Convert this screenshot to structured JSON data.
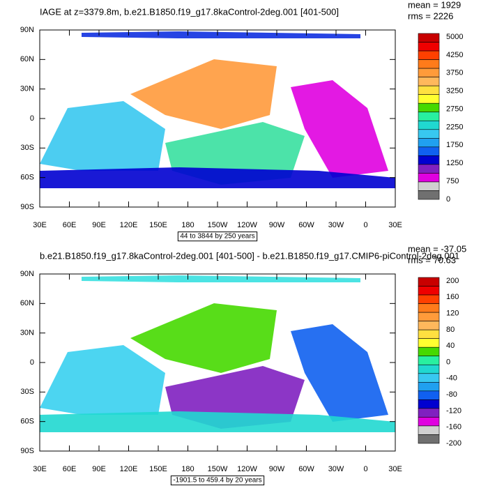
{
  "axes": {
    "lat_labels": [
      "90N",
      "60N",
      "30N",
      "0",
      "30S",
      "60S",
      "90S"
    ],
    "lon_labels": [
      "30E",
      "60E",
      "90E",
      "120E",
      "150E",
      "180",
      "150W",
      "120W",
      "90W",
      "60W",
      "30W",
      "0",
      "30E"
    ]
  },
  "panels": [
    {
      "title": "IAGE at z=3379.8m, b.e21.B1850.f19_g17.8kaControl-2deg.001 [401-500]",
      "mean": "mean = 1929",
      "rms": "rms = 2226",
      "range_note": "44 to 3844 by 250 years",
      "colorbar_labels": [
        "5000",
        "4250",
        "3750",
        "3250",
        "2750",
        "2250",
        "1750",
        "1250",
        "750",
        "0"
      ]
    },
    {
      "title": "b.e21.B1850.f19_g17.8kaControl-2deg.001 [401-500] - b.e21.B1850.f19_g17.CMIP6-piControl-2deg.001",
      "mean": "mean = -37.05",
      "rms": "rms = 70.63",
      "range_note": "-1901.5 to 459.4 by 20 years",
      "colorbar_labels": [
        "200",
        "160",
        "120",
        "80",
        "40",
        "0",
        "-40",
        "-80",
        "-120",
        "-160",
        "-200"
      ]
    }
  ],
  "colorbar_colors": [
    "#c80000",
    "#ef0000",
    "#ff4000",
    "#ff7b1a",
    "#ff9b3a",
    "#ffb85c",
    "#ffe040",
    "#ffff30",
    "#46d900",
    "#28f0a0",
    "#20d8d0",
    "#38c8f0",
    "#20a0f0",
    "#1060f0",
    "#0000d0",
    "#8020c0",
    "#e000e0",
    "#d0d0d0",
    "#707070"
  ]
}
